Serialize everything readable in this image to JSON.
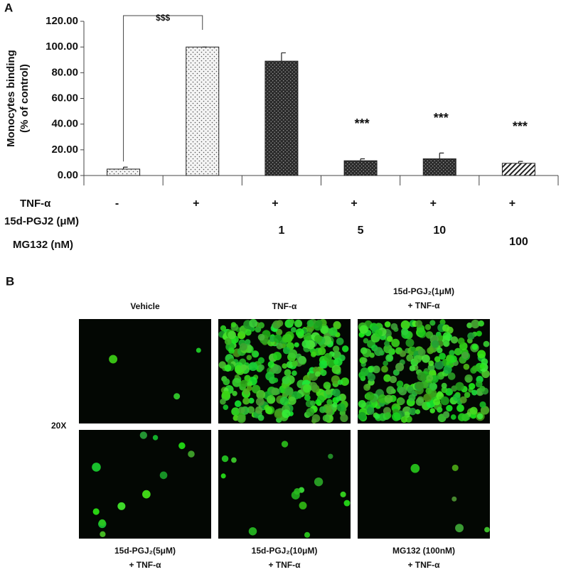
{
  "chart_data": {
    "type": "bar",
    "panel_label": "A",
    "ylabel": [
      "Monocytes  binding",
      "(% of control)"
    ],
    "values": [
      5,
      100,
      89,
      11.5,
      13,
      9.5
    ],
    "errors": [
      1.5,
      0,
      6.5,
      1.5,
      4.5,
      1.5
    ],
    "patterns": [
      "light-dots",
      "light-dots",
      "dark-dots",
      "dark-dots",
      "dark-dots",
      "hatch"
    ],
    "ylim": [
      0,
      120
    ],
    "yticks": [
      {
        "value": 0,
        "label": "0.00"
      },
      {
        "value": 20,
        "label": "20.00"
      },
      {
        "value": 40,
        "label": "40.00"
      },
      {
        "value": 60,
        "label": "60.00"
      },
      {
        "value": 80,
        "label": "80.00"
      },
      {
        "value": 100,
        "label": "100.00"
      },
      {
        "value": 120,
        "label": "120.00"
      }
    ],
    "bracket_label": "$$$",
    "sig_labels": [
      null,
      null,
      null,
      "***",
      "***",
      "***"
    ],
    "treatment_rows": [
      {
        "label": "TNF-α",
        "values": [
          "-",
          "+",
          "+",
          "+",
          "+",
          "+"
        ]
      },
      {
        "label": "15d-PGJ2 (μM)",
        "values": [
          null,
          null,
          "1",
          "5",
          "10",
          null
        ]
      },
      {
        "label": "MG132 (nM)",
        "values": [
          null,
          null,
          null,
          null,
          null,
          "100"
        ]
      }
    ]
  },
  "panel_b": {
    "label": "B",
    "magnification": "20X",
    "images": [
      {
        "caption": [
          "Vehicle"
        ]
      },
      {
        "caption": [
          "TNF-α"
        ]
      },
      {
        "caption": [
          "15d-PGJ₂(1μM)",
          "+ TNF-α"
        ]
      },
      {
        "caption": [
          "15d-PGJ₂(5μM)",
          "+ TNF-α"
        ]
      },
      {
        "caption": [
          "15d-PGJ₂(10μM)",
          "+ TNF-α"
        ]
      },
      {
        "caption": [
          "MG132 (100nM)",
          "+ TNF-α"
        ]
      }
    ]
  }
}
